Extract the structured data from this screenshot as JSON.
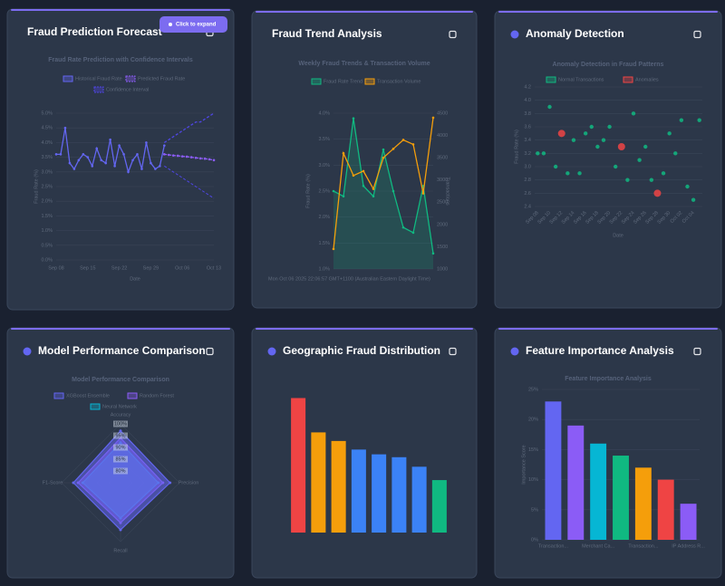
{
  "ui": {
    "expand_button": "Click to expand"
  },
  "chart_data": [
    {
      "type": "line",
      "card_title": "Fraud Prediction Forecast",
      "title": "Fraud Rate Prediction with Confidence Intervals",
      "x_label": "Date",
      "y_label": "Fraud Rate (%)",
      "categories": [
        "Sep 08",
        null,
        null,
        null,
        null,
        null,
        null,
        "Sep 15",
        null,
        null,
        null,
        null,
        null,
        null,
        "Sep 22",
        null,
        null,
        null,
        null,
        null,
        null,
        "Sep 29",
        null,
        null,
        null,
        null,
        null,
        null,
        "Oct 06",
        null,
        null,
        null,
        null,
        null,
        null,
        "Oct 13"
      ],
      "series": [
        {
          "name": "Historical Fraud Rate",
          "color": "#6366f1",
          "markers": true,
          "values": [
            3.6,
            3.6,
            4.5,
            3.3,
            3.1,
            3.4,
            3.6,
            3.5,
            3.2,
            3.8,
            3.4,
            3.3,
            4.1,
            3.2,
            3.9,
            3.6,
            3.0,
            3.4,
            3.6,
            3.1,
            4.0,
            3.3,
            3.1,
            3.2,
            3.9,
            null,
            null,
            null,
            null,
            null,
            null,
            null,
            null,
            null,
            null,
            null
          ]
        },
        {
          "name": "Predicted Fraud Rate",
          "color": "#8b5cf6",
          "markers": true,
          "dashed": true,
          "values": [
            null,
            null,
            null,
            null,
            null,
            null,
            null,
            null,
            null,
            null,
            null,
            null,
            null,
            null,
            null,
            null,
            null,
            null,
            null,
            null,
            null,
            null,
            null,
            null,
            3.6,
            3.58,
            3.56,
            3.55,
            3.53,
            3.52,
            3.5,
            3.48,
            3.46,
            3.45,
            3.43,
            3.4
          ]
        },
        {
          "name": "Confidence Interval",
          "color": "#4f46e5",
          "dashed": true,
          "values": [
            null,
            null,
            null,
            null,
            null,
            null,
            null,
            null,
            null,
            null,
            null,
            null,
            null,
            null,
            null,
            null,
            null,
            null,
            null,
            null,
            null,
            null,
            null,
            null,
            4.0,
            4.1,
            4.2,
            4.3,
            4.4,
            4.5,
            4.6,
            4.7,
            4.7,
            4.8,
            4.9,
            5.0
          ],
          "lower_values": [
            null,
            null,
            null,
            null,
            null,
            null,
            null,
            null,
            null,
            null,
            null,
            null,
            null,
            null,
            null,
            null,
            null,
            null,
            null,
            null,
            null,
            null,
            null,
            null,
            3.2,
            3.1,
            3.0,
            2.9,
            2.8,
            2.7,
            2.6,
            2.5,
            2.4,
            2.3,
            2.2,
            2.1
          ]
        }
      ],
      "ylim": [
        0,
        5
      ],
      "yticks": [
        {
          "value": 0,
          "label": "0.0%"
        },
        {
          "value": 0.5,
          "label": "0.5%"
        },
        {
          "value": 1,
          "label": "1.0%"
        },
        {
          "value": 1.5,
          "label": "1.5%"
        },
        {
          "value": 2,
          "label": "2.0%"
        },
        {
          "value": 2.5,
          "label": "2.5%"
        },
        {
          "value": 3,
          "label": "3.0%"
        },
        {
          "value": 3.5,
          "label": "3.5%"
        },
        {
          "value": 4,
          "label": "4.0%"
        },
        {
          "value": 4.5,
          "label": "4.5%"
        },
        {
          "value": 5,
          "label": "5.0%"
        }
      ],
      "grid": true
    },
    {
      "type": "line",
      "card_title": "Fraud Trend Analysis",
      "title": "Weekly Fraud Trends & Transaction Volume",
      "y_label": "Fraud Rate (%)",
      "y2_label": "Transactions",
      "footnote": "Mon Oct 06 2025 22:06:57 GMT+1100 (Australian Eastern Daylight Time)",
      "categories": [
        null,
        null,
        null,
        null,
        null,
        null,
        null,
        null,
        null,
        null,
        null
      ],
      "series": [
        {
          "name": "Fraud Rate Trend",
          "color": "#10b981",
          "markers": true,
          "fill": true,
          "values": [
            2.5,
            2.4,
            3.9,
            2.6,
            2.4,
            3.3,
            2.5,
            1.8,
            1.7,
            2.6,
            1.3
          ]
        },
        {
          "name": "Transaction Volume",
          "color": "#f59e0b",
          "markers": true,
          "axis": "y2",
          "values": [
            1450,
            3600,
            3100,
            3200,
            2800,
            3500,
            3700,
            3900,
            3800,
            2700,
            4400
          ]
        }
      ],
      "ylim": [
        1,
        4
      ],
      "yticks": [
        {
          "value": 1,
          "label": "1.0%"
        },
        {
          "value": 1.5,
          "label": "1.5%"
        },
        {
          "value": 2,
          "label": "2.0%"
        },
        {
          "value": 2.5,
          "label": "2.5%"
        },
        {
          "value": 3,
          "label": "3.0%"
        },
        {
          "value": 3.5,
          "label": "3.5%"
        },
        {
          "value": 4,
          "label": "4.0%"
        }
      ],
      "y2lim": [
        1000,
        4500
      ],
      "y2ticks": [
        1000,
        1500,
        2000,
        2500,
        3000,
        3500,
        4000,
        4500
      ],
      "grid": true
    },
    {
      "type": "scatter",
      "card_title": "Anomaly Detection",
      "title": "Anomaly Detection in Fraud Patterns",
      "x_label": "Date",
      "y_label": "Fraud Rate (%)",
      "categories": [
        "Sep 08",
        null,
        "Sep 10",
        null,
        "Sep 12",
        null,
        "Sep 14",
        null,
        "Sep 16",
        null,
        "Sep 18",
        null,
        "Sep 20",
        null,
        "Sep 22",
        null,
        "Sep 24",
        null,
        "Sep 26",
        null,
        "Sep 28",
        null,
        "Sep 30",
        null,
        "Oct 02",
        null,
        "Oct 04",
        null
      ],
      "series": [
        {
          "name": "Normal Transactions",
          "color": "#10b981",
          "marker_size": 2.2,
          "values": [
            3.2,
            3.2,
            3.9,
            3.0,
            null,
            2.9,
            3.4,
            2.9,
            3.5,
            3.6,
            3.3,
            3.4,
            3.6,
            3.0,
            null,
            2.8,
            3.8,
            3.1,
            3.3,
            2.8,
            null,
            2.9,
            3.5,
            3.2,
            3.7,
            2.7,
            2.5,
            3.7
          ]
        },
        {
          "name": "Anomalies",
          "color": "#ef4444",
          "marker_size": 4,
          "values": [
            null,
            null,
            null,
            null,
            3.5,
            null,
            null,
            null,
            null,
            null,
            null,
            null,
            null,
            null,
            3.3,
            null,
            null,
            null,
            null,
            null,
            2.6,
            null,
            null,
            null,
            null,
            null,
            null,
            null
          ]
        }
      ],
      "ylim": [
        2.4,
        4.2
      ],
      "yticks": [
        2.4,
        2.6,
        2.8,
        {
          "value": 3,
          "label": "3.0"
        },
        3.2,
        3.4,
        3.6,
        3.8,
        {
          "value": 4,
          "label": "4.0"
        },
        4.2
      ],
      "grid": true
    },
    {
      "type": "radar",
      "card_title": "Model Performance Comparison",
      "title": "Model Performance Comparison",
      "axes": [
        "Accuracy",
        "Precision",
        "Recall",
        "F1-Score"
      ],
      "series": [
        {
          "name": "XGBoost Ensemble",
          "color": "#6366f1",
          "values": [
            97,
            96,
            95,
            95
          ]
        },
        {
          "name": "Random Forest",
          "color": "#8b5cf6",
          "values": [
            94,
            93,
            92,
            93
          ]
        },
        {
          "name": "Neural Network",
          "color": "#06b6d4",
          "values": [
            92,
            91,
            90,
            91
          ]
        }
      ],
      "rlim": [
        75,
        100
      ],
      "rticks": [
        {
          "value": 80,
          "label": "80%"
        },
        {
          "value": 85,
          "label": "85%"
        },
        {
          "value": 90,
          "label": "90%"
        },
        {
          "value": 95,
          "label": "95%"
        },
        {
          "value": 100,
          "label": "100%"
        }
      ]
    },
    {
      "type": "bar",
      "card_title": "Geographic Fraud Distribution",
      "categories": [
        null,
        null,
        null,
        null,
        null,
        null,
        null,
        null
      ],
      "values": [
        141,
        105,
        96,
        87,
        82,
        79,
        69,
        55
      ],
      "colors": [
        "#ef4444",
        "#f59e0b",
        "#f59e0b",
        "#3b82f6",
        "#3b82f6",
        "#3b82f6",
        "#3b82f6",
        "#10b981"
      ],
      "ylim": [
        0,
        150
      ]
    },
    {
      "type": "bar",
      "card_title": "Feature Importance Analysis",
      "title": "Feature Importance Analysis",
      "y_label": "Importance Score",
      "categories": [
        "Transaction...",
        null,
        "Merchant Ca...",
        null,
        "Transaction...",
        null,
        "IP Address R..."
      ],
      "values": [
        23,
        19,
        16,
        14,
        12,
        10,
        6
      ],
      "colors": [
        "#6366f1",
        "#8b5cf6",
        "#06b6d4",
        "#10b981",
        "#f59e0b",
        "#ef4444",
        "#8b5cf6"
      ],
      "ylim": [
        0,
        25
      ],
      "yticks": [
        {
          "value": 0,
          "label": "0%"
        },
        {
          "value": 5,
          "label": "5%"
        },
        {
          "value": 10,
          "label": "10%"
        },
        {
          "value": 15,
          "label": "15%"
        },
        {
          "value": 20,
          "label": "20%"
        },
        {
          "value": 25,
          "label": "25%"
        }
      ],
      "grid": true
    }
  ]
}
